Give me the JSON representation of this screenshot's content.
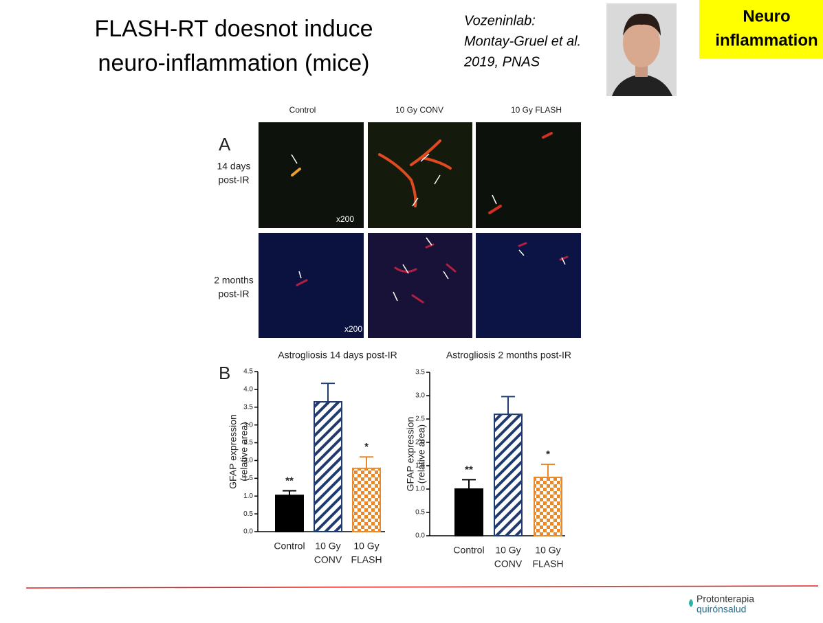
{
  "slide": {
    "title": [
      "FLASH-RT doesnot induce",
      "neuro-inflammation (mice)"
    ],
    "citation": [
      "Vozeninlab:",
      "Montay-Gruel et al.",
      "2019, PNAS"
    ],
    "badge": [
      "Neuro",
      "inflammation"
    ],
    "logo": [
      "Protonterapia",
      "quirónsalud"
    ]
  },
  "figure": {
    "panel_a": "A",
    "panel_b": "B",
    "columns": [
      "Control",
      "10 Gy CONV",
      "10 Gy FLASH"
    ],
    "rows": [
      [
        "14 days",
        "post-IR"
      ],
      [
        "2 months",
        "post-IR"
      ]
    ],
    "magnification": "x200"
  },
  "chart_data": [
    {
      "type": "bar",
      "title": "Astrogliosis 14 days post-IR",
      "ylabel": [
        "GFAP expression",
        "(relative area)"
      ],
      "categories": [
        [
          "Control"
        ],
        [
          "10 Gy",
          "CONV"
        ],
        [
          "10 Gy",
          "FLASH"
        ]
      ],
      "values": [
        1.02,
        3.65,
        1.78
      ],
      "errors": [
        0.13,
        0.52,
        0.32
      ],
      "annotations": [
        "**",
        null,
        "*"
      ],
      "colors": [
        "#000000",
        "#1f3a6e",
        "#e8892e"
      ],
      "patterns": [
        "solid",
        "hatch",
        "checker"
      ],
      "ylim": [
        0,
        4.5
      ],
      "yticks": [
        {
          "value": 0,
          "label": "0.0"
        },
        0.5,
        {
          "value": 1,
          "label": "1.0"
        },
        1.5,
        {
          "value": 2,
          "label": "2.0"
        },
        2.5,
        {
          "value": 3,
          "label": "3.0"
        },
        3.5,
        {
          "value": 4,
          "label": "4.0"
        },
        4.5
      ]
    },
    {
      "type": "bar",
      "title": "Astrogliosis 2 months post-IR",
      "ylabel": [
        "GFAP expression",
        "(relative area)"
      ],
      "categories": [
        [
          "Control"
        ],
        [
          "10 Gy",
          "CONV"
        ],
        [
          "10 Gy",
          "FLASH"
        ]
      ],
      "values": [
        1.0,
        2.6,
        1.25
      ],
      "errors": [
        0.2,
        0.38,
        0.28
      ],
      "annotations": [
        "**",
        null,
        "*"
      ],
      "colors": [
        "#000000",
        "#1f3a6e",
        "#e8892e"
      ],
      "patterns": [
        "solid",
        "hatch",
        "checker"
      ],
      "ylim": [
        0,
        3.5
      ],
      "yticks": [
        {
          "value": 0,
          "label": "0.0"
        },
        0.5,
        {
          "value": 1,
          "label": "1.0"
        },
        1.5,
        {
          "value": 2,
          "label": "2.0"
        },
        2.5,
        {
          "value": 3,
          "label": "3.0"
        },
        3.5
      ]
    }
  ]
}
